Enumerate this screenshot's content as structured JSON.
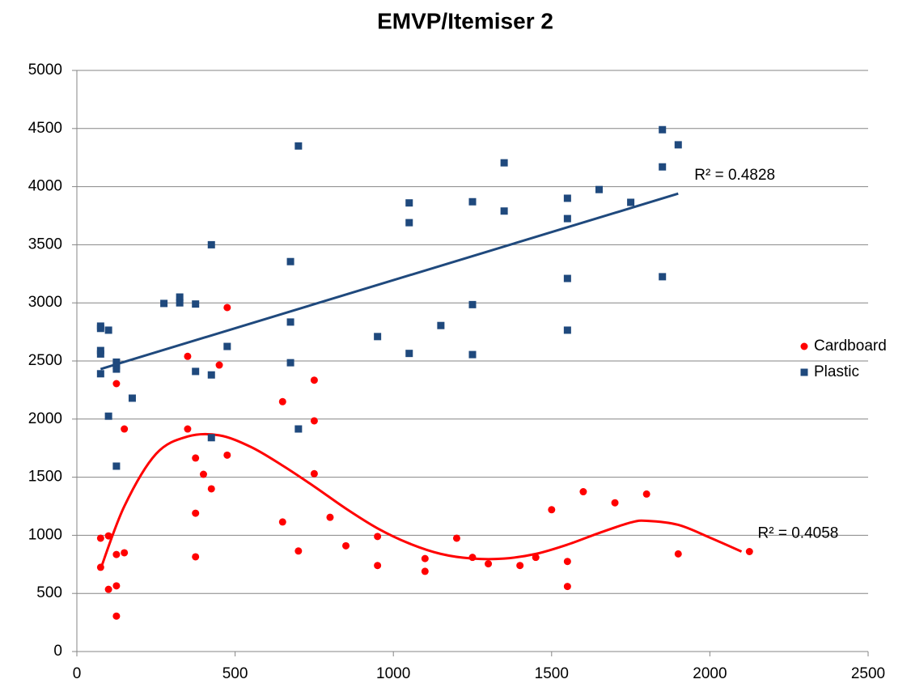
{
  "chart_data": {
    "type": "scatter",
    "title": "EMVP/Itemiser 2",
    "xlim": [
      0,
      2500
    ],
    "xticks": [
      0,
      500,
      1000,
      1500,
      2000,
      2500
    ],
    "ylim": [
      0,
      5000
    ],
    "yticks": [
      0,
      500,
      1000,
      1500,
      2000,
      2500,
      3000,
      3500,
      4000,
      4500,
      5000
    ],
    "grid": true,
    "legend": "right",
    "series": [
      {
        "name": "Cardboard",
        "color": "#ff0000",
        "marker": "circle",
        "x": [
          75,
          75,
          100,
          100,
          125,
          125,
          125,
          125,
          150,
          150,
          350,
          350,
          375,
          375,
          375,
          400,
          425,
          450,
          475,
          475,
          650,
          650,
          700,
          750,
          750,
          750,
          800,
          850,
          950,
          950,
          1100,
          1100,
          1200,
          1250,
          1300,
          1400,
          1450,
          1500,
          1550,
          1550,
          1600,
          1700,
          1800,
          1900,
          2125
        ],
        "values": [
          975,
          725,
          995,
          535,
          2305,
          835,
          565,
          305,
          1915,
          850,
          2540,
          1915,
          1665,
          1190,
          815,
          1525,
          1400,
          2465,
          2960,
          1690,
          2150,
          1115,
          865,
          2335,
          1985,
          1530,
          1155,
          910,
          990,
          740,
          800,
          690,
          975,
          810,
          755,
          740,
          810,
          1220,
          775,
          560,
          1375,
          1280,
          1355,
          840,
          860
        ],
        "trendline": {
          "label": "R² = 0.4058",
          "x": [
            75,
            150,
            250,
            350,
            450,
            550,
            650,
            750,
            850,
            950,
            1050,
            1150,
            1250,
            1350,
            1450,
            1550,
            1650,
            1750,
            1800,
            1900,
            2000,
            2100
          ],
          "y": [
            710,
            1250,
            1700,
            1850,
            1860,
            1760,
            1600,
            1420,
            1230,
            1060,
            930,
            840,
            800,
            800,
            840,
            920,
            1020,
            1110,
            1125,
            1090,
            980,
            860
          ]
        }
      },
      {
        "name": "Plastic",
        "color": "#1f497d",
        "marker": "square",
        "x": [
          75,
          75,
          75,
          75,
          75,
          100,
          100,
          125,
          125,
          125,
          125,
          175,
          275,
          325,
          325,
          375,
          375,
          425,
          425,
          425,
          475,
          675,
          675,
          675,
          700,
          700,
          950,
          1050,
          1050,
          1050,
          1150,
          1250,
          1250,
          1250,
          1350,
          1350,
          1550,
          1550,
          1550,
          1550,
          1650,
          1750,
          1850,
          1850,
          1850,
          1900
        ],
        "values": [
          2800,
          2780,
          2590,
          2560,
          2390,
          2765,
          2025,
          2490,
          2460,
          2430,
          1595,
          2180,
          2995,
          3050,
          3000,
          2990,
          2410,
          3500,
          2380,
          1840,
          2625,
          3355,
          2835,
          2485,
          4350,
          1915,
          2710,
          3860,
          3690,
          2565,
          2805,
          3870,
          2985,
          2555,
          4205,
          3790,
          3900,
          3725,
          3210,
          2765,
          3975,
          3865,
          4490,
          4170,
          3225,
          4360
        ],
        "trendline": {
          "label": "R² = 0.4828",
          "x": [
            75,
            1900
          ],
          "y": [
            2430,
            3940
          ]
        }
      }
    ]
  }
}
